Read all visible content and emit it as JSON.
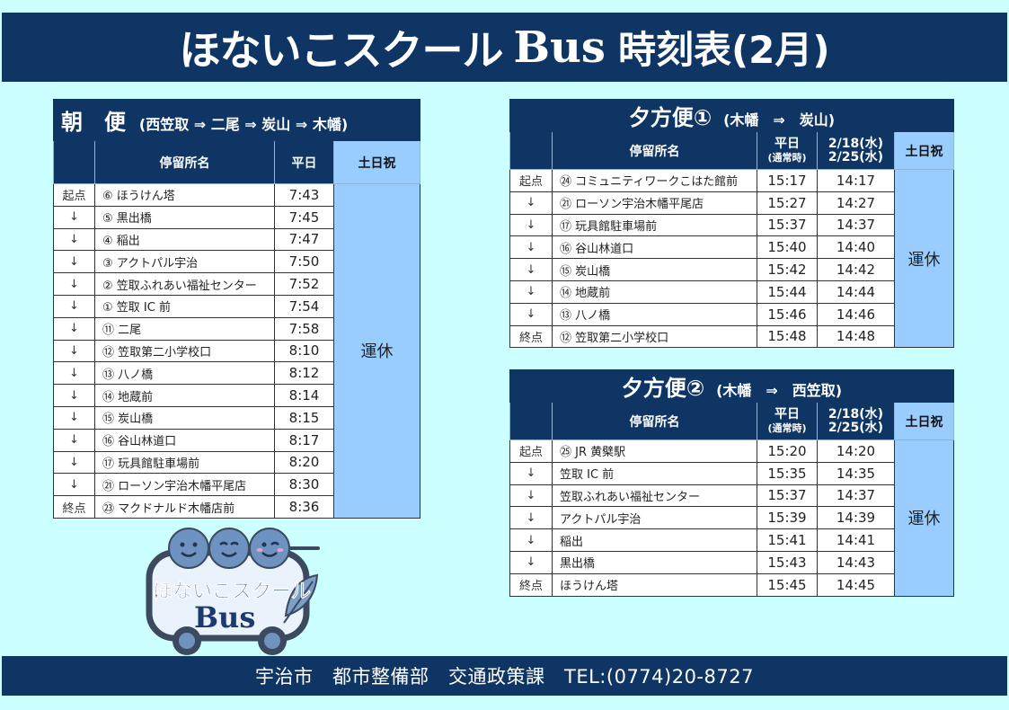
{
  "header": {
    "title_main": "ほないこスクール",
    "title_bus": "Bus",
    "title_sub": "時刻表(2月)"
  },
  "colors": {
    "navy": "#0f3565",
    "background": "#ccffff",
    "weekend_blue": "#99ccff"
  },
  "morning": {
    "title": "朝　便",
    "route": "(西笠取 ⇒ 二尾 ⇒ 炭山 ⇒ 木幡)",
    "columns": [
      "",
      "停留所名",
      "平日",
      "土日祝"
    ],
    "weekend_note": "運休",
    "rows": [
      {
        "kbn": "起点",
        "stop": "⑥ ほうけん塔",
        "weekday": "7:43"
      },
      {
        "kbn": "↓",
        "stop": "⑤ 黒出橋",
        "weekday": "7:45"
      },
      {
        "kbn": "↓",
        "stop": "④ 稲出",
        "weekday": "7:47"
      },
      {
        "kbn": "↓",
        "stop": "③ アクトパル宇治",
        "weekday": "7:50"
      },
      {
        "kbn": "↓",
        "stop": "② 笠取ふれあい福祉センター",
        "weekday": "7:52"
      },
      {
        "kbn": "↓",
        "stop": "① 笠取 IC 前",
        "weekday": "7:54"
      },
      {
        "kbn": "↓",
        "stop": "⑪ 二尾",
        "weekday": "7:58"
      },
      {
        "kbn": "↓",
        "stop": "⑫ 笠取第二小学校口",
        "weekday": "8:10"
      },
      {
        "kbn": "↓",
        "stop": "⑬ 八ノ橋",
        "weekday": "8:12"
      },
      {
        "kbn": "↓",
        "stop": "⑭ 地蔵前",
        "weekday": "8:14"
      },
      {
        "kbn": "↓",
        "stop": "⑮ 炭山橋",
        "weekday": "8:15"
      },
      {
        "kbn": "↓",
        "stop": "⑯ 谷山林道口",
        "weekday": "8:17"
      },
      {
        "kbn": "↓",
        "stop": "⑰ 玩具館駐車場前",
        "weekday": "8:20"
      },
      {
        "kbn": "↓",
        "stop": "㉑ ローソン宇治木幡平尾店",
        "weekday": "8:30"
      },
      {
        "kbn": "終点",
        "stop": "㉓ マクドナルド木幡店前",
        "weekday": "8:36"
      }
    ]
  },
  "evening1": {
    "title": "夕方便①",
    "route": "(木幡　⇒　炭山)",
    "columns": {
      "stop": "停留所名",
      "weekday": "平日",
      "weekday_note": "(通常時)",
      "special_line1": "2/18(水)",
      "special_line2": "2/25(水)",
      "weekend": "土日祝"
    },
    "weekend_note": "運休",
    "rows": [
      {
        "kbn": "起点",
        "stop": "㉔ コミュニティワークこはた館前",
        "weekday": "15:17",
        "special": "14:17"
      },
      {
        "kbn": "↓",
        "stop": "㉑ ローソン宇治木幡平尾店",
        "weekday": "15:27",
        "special": "14:27"
      },
      {
        "kbn": "↓",
        "stop": "⑰ 玩具館駐車場前",
        "weekday": "15:37",
        "special": "14:37"
      },
      {
        "kbn": "↓",
        "stop": "⑯ 谷山林道口",
        "weekday": "15:40",
        "special": "14:40"
      },
      {
        "kbn": "↓",
        "stop": "⑮ 炭山橋",
        "weekday": "15:42",
        "special": "14:42"
      },
      {
        "kbn": "↓",
        "stop": "⑭ 地蔵前",
        "weekday": "15:44",
        "special": "14:44"
      },
      {
        "kbn": "↓",
        "stop": "⑬ 八ノ橋",
        "weekday": "15:46",
        "special": "14:46"
      },
      {
        "kbn": "終点",
        "stop": "⑫ 笠取第二小学校口",
        "weekday": "15:48",
        "special": "14:48"
      }
    ]
  },
  "evening2": {
    "title": "夕方便②",
    "route": "(木幡　⇒　西笠取)",
    "columns": {
      "stop": "停留所名",
      "weekday": "平日",
      "weekday_note": "(通常時)",
      "special_line1": "2/18(水)",
      "special_line2": "2/25(水)",
      "weekend": "土日祝"
    },
    "weekend_note": "運休",
    "rows": [
      {
        "kbn": "起点",
        "stop": "㉕ JR 黄檗駅",
        "weekday": "15:20",
        "special": "14:20"
      },
      {
        "kbn": "↓",
        "stop": "笠取 IC 前",
        "weekday": "15:35",
        "special": "14:35"
      },
      {
        "kbn": "↓",
        "stop": "笠取ふれあい福祉センター",
        "weekday": "15:37",
        "special": "14:37"
      },
      {
        "kbn": "↓",
        "stop": "アクトパル宇治",
        "weekday": "15:39",
        "special": "14:39"
      },
      {
        "kbn": "↓",
        "stop": "稲出",
        "weekday": "15:41",
        "special": "14:41"
      },
      {
        "kbn": "↓",
        "stop": "黒出橋",
        "weekday": "15:43",
        "special": "14:43"
      },
      {
        "kbn": "終点",
        "stop": "ほうけん塔",
        "weekday": "15:45",
        "special": "14:45"
      }
    ]
  },
  "logo": {
    "line1": "ほないこスクール",
    "line2": "Bus"
  },
  "footer": {
    "text": "宇治市　都市整備部　交通政策課　TEL:(0774)20-8727"
  }
}
